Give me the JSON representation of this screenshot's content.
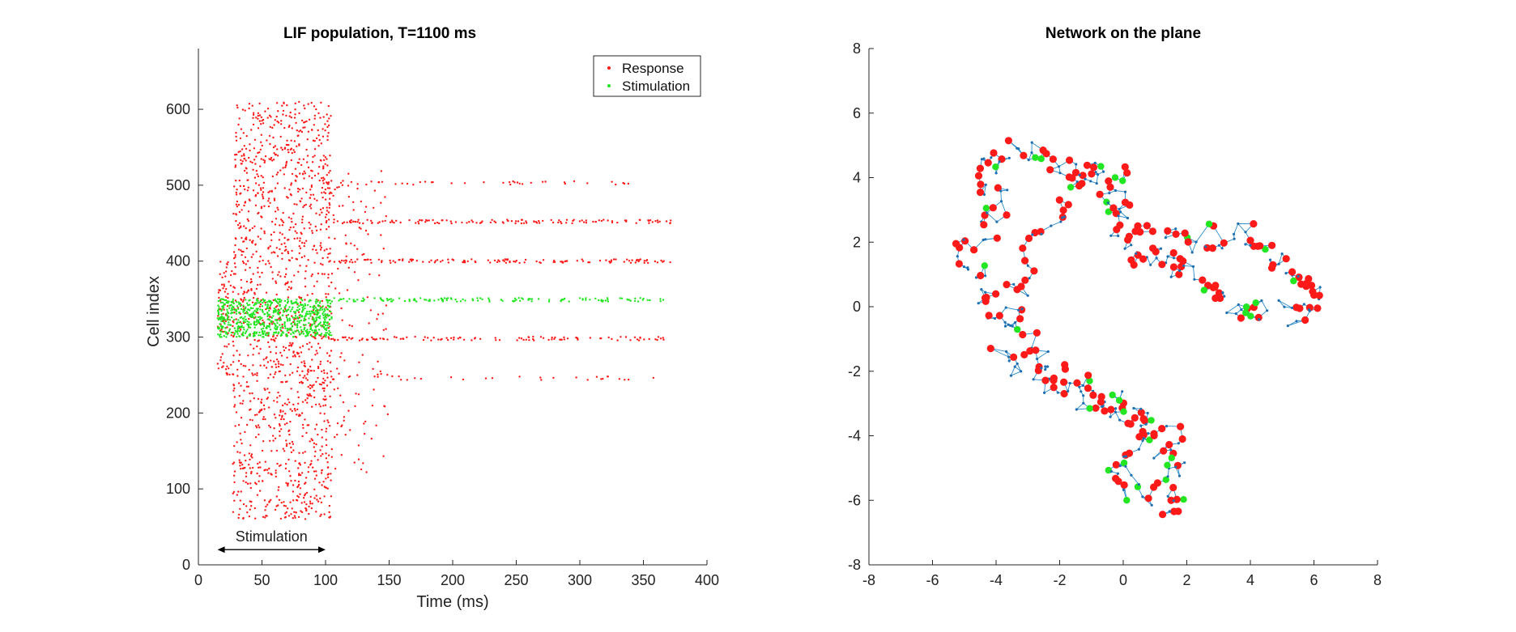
{
  "colors": {
    "response": "#ff1a1a",
    "stimulation": "#22e622",
    "network_edge": "#2b8ccc",
    "network_node": "#1f6fb0",
    "axis": "#262626"
  },
  "chart_data": [
    {
      "type": "scatter",
      "title": "LIF population, T=1100 ms",
      "xlabel": "Time (ms)",
      "ylabel": "Cell index",
      "xlim": [
        0,
        400
      ],
      "ylim": [
        0,
        680
      ],
      "xticks": [
        "0",
        "50",
        "100",
        "150",
        "200",
        "250",
        "300",
        "350",
        "400"
      ],
      "yticks": [
        "0",
        "100",
        "200",
        "300",
        "400",
        "500",
        "600"
      ],
      "legend": {
        "position": "top-right",
        "entries": [
          "Response",
          "Stimulation"
        ]
      },
      "annotation": {
        "text": "Stimulation",
        "x_range": [
          15,
          100
        ],
        "y": 20
      },
      "series": [
        {
          "name": "Response",
          "regions": [
            {
              "x": [
                27,
                105
              ],
              "y": [
                60,
                610
              ],
              "count": 1400
            },
            {
              "x": [
                15,
                28
              ],
              "y": [
                250,
                400
              ],
              "count": 90
            },
            {
              "x": [
                105,
                150
              ],
              "y": [
                120,
                520
              ],
              "count": 120
            }
          ],
          "rows": [
            {
              "y": 452,
              "x": [
                100,
                372
              ],
              "count": 130
            },
            {
              "y": 400,
              "x": [
                100,
                372
              ],
              "count": 130
            },
            {
              "y": 298,
              "x": [
                100,
                368
              ],
              "count": 110
            },
            {
              "y": 503,
              "x": [
                100,
                345
              ],
              "count": 40
            },
            {
              "y": 246,
              "x": [
                100,
                360
              ],
              "count": 30
            }
          ]
        },
        {
          "name": "Stimulation",
          "regions": [
            {
              "x": [
                15,
                105
              ],
              "y": [
                300,
                350
              ],
              "count": 700
            }
          ],
          "rows": [
            {
              "y": 349,
              "x": [
                100,
                368
              ],
              "count": 140
            }
          ]
        }
      ]
    },
    {
      "type": "network",
      "title": "Network on the plane",
      "xlim": [
        -8,
        8
      ],
      "ylim": [
        -8,
        8
      ],
      "xticks": [
        "-8",
        "-6",
        "-4",
        "-2",
        "0",
        "2",
        "4",
        "6",
        "8"
      ],
      "yticks": [
        "-8",
        "-6",
        "-4",
        "-2",
        "0",
        "2",
        "4",
        "6",
        "8"
      ],
      "path": [
        [
          -4.2,
          4.3
        ],
        [
          -3.8,
          4.8
        ],
        [
          -3.2,
          4.9
        ],
        [
          -2.6,
          4.5
        ],
        [
          -2.0,
          4.3
        ],
        [
          -1.5,
          4.2
        ],
        [
          -1.0,
          4.2
        ],
        [
          -0.5,
          4.1
        ],
        [
          0.0,
          3.9
        ],
        [
          -0.2,
          3.2
        ],
        [
          0.1,
          2.5
        ],
        [
          0.5,
          2.2
        ],
        [
          1.2,
          2.0
        ],
        [
          1.8,
          2.1
        ],
        [
          2.4,
          2.0
        ],
        [
          2.9,
          2.2
        ],
        [
          3.4,
          2.3
        ],
        [
          3.9,
          2.2
        ],
        [
          4.4,
          1.9
        ],
        [
          4.8,
          1.5
        ],
        [
          5.2,
          1.1
        ],
        [
          5.6,
          0.9
        ],
        [
          5.9,
          0.6
        ],
        [
          5.8,
          0.0
        ],
        [
          5.6,
          -0.4
        ],
        [
          5.1,
          -0.2
        ],
        [
          4.6,
          -0.1
        ],
        [
          4.1,
          0.0
        ],
        [
          3.6,
          -0.1
        ],
        [
          3.1,
          0.2
        ],
        [
          2.6,
          0.6
        ],
        [
          2.1,
          0.9
        ],
        [
          1.8,
          1.2
        ],
        [
          1.6,
          1.6
        ],
        [
          1.0,
          1.7
        ],
        [
          0.4,
          1.6
        ],
        [
          -0.1,
          1.8
        ],
        [
          -0.3,
          3.0
        ],
        [
          -0.7,
          3.9
        ],
        [
          -1.3,
          3.6
        ],
        [
          -1.8,
          2.9
        ],
        [
          -2.4,
          2.5
        ],
        [
          -2.9,
          1.9
        ],
        [
          -3.2,
          1.1
        ],
        [
          -3.4,
          0.3
        ],
        [
          -3.2,
          -0.4
        ],
        [
          -3.0,
          -1.0
        ],
        [
          -2.7,
          -1.5
        ],
        [
          -2.2,
          -1.9
        ],
        [
          -1.6,
          -2.1
        ],
        [
          -1.1,
          -2.5
        ],
        [
          -0.6,
          -2.8
        ],
        [
          -0.1,
          -2.9
        ],
        [
          0.4,
          -3.1
        ],
        [
          0.8,
          -3.4
        ],
        [
          1.2,
          -3.7
        ],
        [
          1.6,
          -4.1
        ],
        [
          1.6,
          -4.7
        ],
        [
          1.6,
          -5.2
        ],
        [
          1.6,
          -5.7
        ],
        [
          1.7,
          -6.2
        ],
        [
          1.2,
          -6.0
        ],
        [
          0.7,
          -5.8
        ],
        [
          0.2,
          -5.6
        ],
        [
          -0.2,
          -5.1
        ],
        [
          0.2,
          -4.7
        ],
        [
          0.6,
          -4.4
        ],
        [
          0.9,
          -4.1
        ],
        [
          0.5,
          -3.6
        ],
        [
          0.0,
          -3.2
        ],
        [
          -0.5,
          -3.0
        ],
        [
          -1.2,
          -2.8
        ],
        [
          -1.8,
          -2.5
        ],
        [
          -2.4,
          -2.2
        ],
        [
          -3.0,
          -1.9
        ],
        [
          -3.5,
          -1.6
        ],
        [
          -3.9,
          -1.1
        ],
        [
          -3.9,
          -0.4
        ],
        [
          -4.3,
          0.0
        ],
        [
          -4.4,
          0.6
        ],
        [
          -4.7,
          1.2
        ],
        [
          -5.0,
          1.6
        ],
        [
          -4.6,
          2.1
        ],
        [
          -4.2,
          2.6
        ],
        [
          -3.9,
          3.1
        ],
        [
          -4.2,
          3.6
        ],
        [
          -4.4,
          4.0
        ]
      ],
      "node_count": 420
    }
  ]
}
